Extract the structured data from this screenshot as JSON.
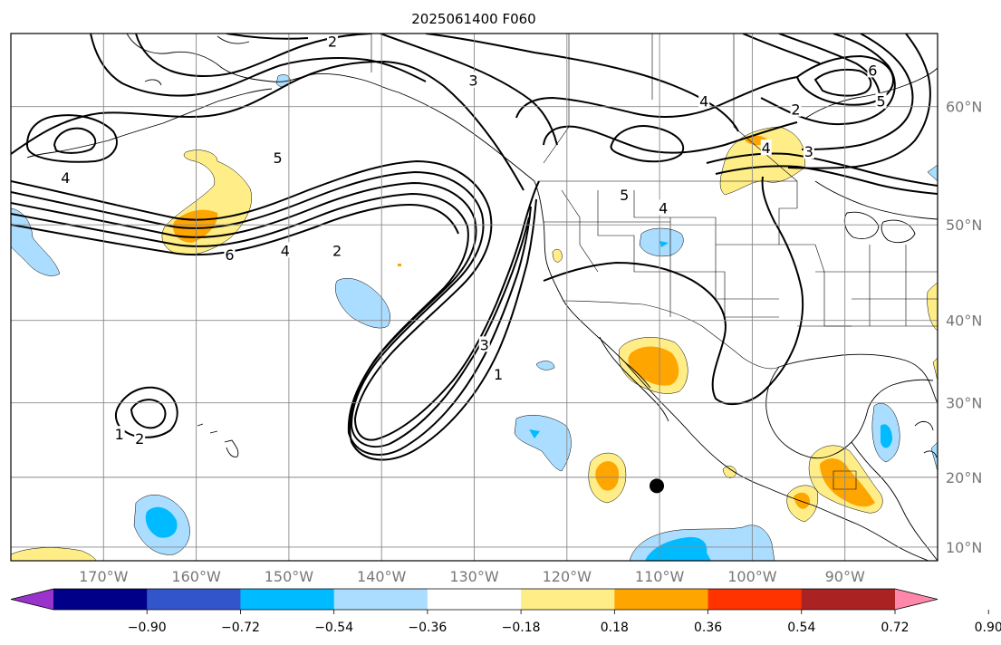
{
  "title": "2025061400 F060",
  "map": {
    "lon_range": [
      -180,
      -80
    ],
    "lat_range": [
      8,
      65
    ],
    "lon_ticks": [
      {
        "lon": -170,
        "label": "170°W"
      },
      {
        "lon": -160,
        "label": "160°W"
      },
      {
        "lon": -150,
        "label": "150°W"
      },
      {
        "lon": -140,
        "label": "140°W"
      },
      {
        "lon": -130,
        "label": "130°W"
      },
      {
        "lon": -120,
        "label": "120°W"
      },
      {
        "lon": -110,
        "label": "110°W"
      },
      {
        "lon": -100,
        "label": "100°W"
      },
      {
        "lon": -90,
        "label": "90°W"
      }
    ],
    "lat_ticks": [
      {
        "lat": 10,
        "label": "10°N"
      },
      {
        "lat": 20,
        "label": "20°N"
      },
      {
        "lat": 30,
        "label": "30°N"
      },
      {
        "lat": 40,
        "label": "40°N"
      },
      {
        "lat": 50,
        "label": "50°N"
      },
      {
        "lat": 60,
        "label": "60°N"
      }
    ],
    "grid": true,
    "marker": {
      "lon": -110.3,
      "lat": 18.8,
      "color": "#000000"
    },
    "contour_labels": [
      {
        "text": "2",
        "lon": -145.3,
        "lat": 64.5
      },
      {
        "text": "3",
        "lon": -130.1,
        "lat": 61.9
      },
      {
        "text": "4",
        "lon": -174.1,
        "lat": 54.3
      },
      {
        "text": "5",
        "lon": -151.2,
        "lat": 56.0
      },
      {
        "text": "6",
        "lon": -156.4,
        "lat": 47.1
      },
      {
        "text": "4",
        "lon": -150.4,
        "lat": 47.5
      },
      {
        "text": "2",
        "lon": -144.8,
        "lat": 47.5
      },
      {
        "text": "3",
        "lon": -128.9,
        "lat": 37.2
      },
      {
        "text": "1",
        "lon": -127.4,
        "lat": 33.6
      },
      {
        "text": "2",
        "lon": -166.1,
        "lat": 25.3
      },
      {
        "text": "1",
        "lon": -168.3,
        "lat": 25.9
      },
      {
        "text": "5",
        "lon": -113.8,
        "lat": 52.8
      },
      {
        "text": "4",
        "lon": -109.6,
        "lat": 51.6
      },
      {
        "text": "4",
        "lon": -105.2,
        "lat": 60.4
      },
      {
        "text": "4",
        "lon": -98.5,
        "lat": 56.8
      },
      {
        "text": "6",
        "lon": -87.0,
        "lat": 62.6
      },
      {
        "text": "5",
        "lon": -86.1,
        "lat": 60.4
      },
      {
        "text": "3",
        "lon": -93.9,
        "lat": 56.5
      },
      {
        "text": "2",
        "lon": -95.3,
        "lat": 59.8
      }
    ]
  },
  "colorbar": {
    "colors": [
      "#9933cc",
      "#000088",
      "#3355cc",
      "#00bbff",
      "#aaddff",
      "#ffffff",
      "#ffee88",
      "#ffa500",
      "#ff3300",
      "#aa2222",
      "#ff88aa"
    ],
    "tick_labels": [
      "−0.90",
      "−0.72",
      "−0.54",
      "−0.36",
      "−0.18",
      "0.18",
      "0.36",
      "0.54",
      "0.72",
      "0.90"
    ]
  }
}
